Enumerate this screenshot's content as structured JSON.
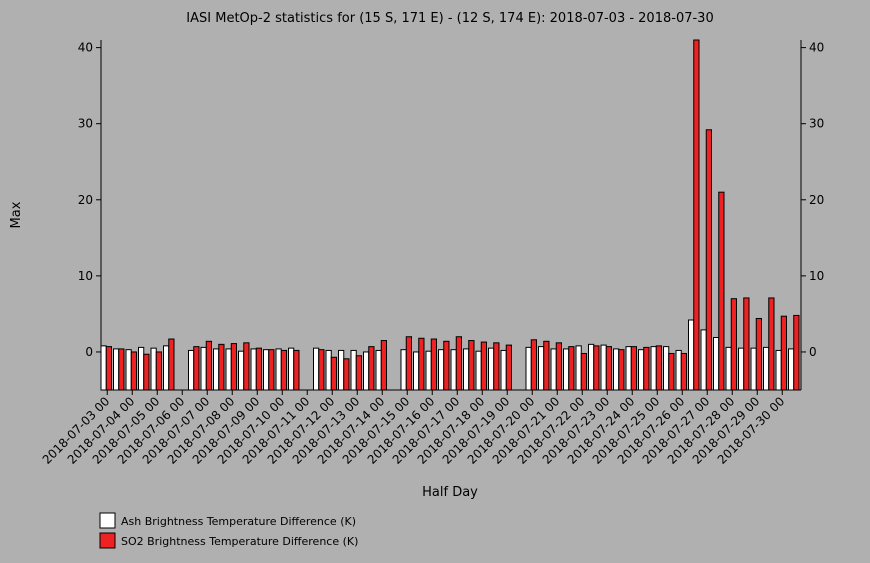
{
  "chart_data": {
    "type": "bar",
    "title": "IASI MetOp-2 statistics for (15 S, 171 E) - (12 S, 174 E): 2018-07-03 - 2018-07-30",
    "x_label": "Half Day",
    "y_label": "Max",
    "categories": [
      "2018-07-03 00",
      null,
      "2018-07-04 00",
      null,
      "2018-07-05 00",
      null,
      "2018-07-06 00",
      null,
      "2018-07-07 00",
      null,
      "2018-07-08 00",
      null,
      "2018-07-09 00",
      null,
      "2018-07-10 00",
      null,
      "2018-07-11 00",
      null,
      "2018-07-12 00",
      null,
      "2018-07-13 00",
      null,
      "2018-07-14 00",
      null,
      "2018-07-15 00",
      null,
      "2018-07-16 00",
      null,
      "2018-07-17 00",
      null,
      "2018-07-18 00",
      null,
      "2018-07-19 00",
      null,
      "2018-07-20 00",
      null,
      "2018-07-21 00",
      null,
      "2018-07-22 00",
      null,
      "2018-07-23 00",
      null,
      "2018-07-24 00",
      null,
      "2018-07-25 00",
      null,
      "2018-07-26 00",
      null,
      "2018-07-27 00",
      null,
      "2018-07-28 00",
      null,
      "2018-07-29 00",
      null,
      "2018-07-30 00",
      null
    ],
    "series": [
      {
        "name": "Ash Brightness Temperature Difference (K)",
        "color": "#ffffff",
        "values": [
          0.8,
          0.4,
          0.3,
          0.6,
          0.5,
          0.8,
          null,
          0.2,
          0.6,
          0.4,
          0.4,
          0.1,
          0.4,
          0.3,
          0.4,
          0.5,
          null,
          0.5,
          0.2,
          0.2,
          0.2,
          0.0,
          0.2,
          null,
          0.3,
          0.0,
          0.1,
          0.3,
          0.3,
          0.4,
          0.1,
          0.5,
          0.2,
          null,
          0.6,
          0.7,
          0.4,
          0.4,
          0.8,
          1.0,
          0.9,
          0.4,
          0.7,
          0.3,
          0.7,
          0.7,
          0.2,
          4.2,
          2.9,
          1.9,
          0.6,
          0.5,
          0.5,
          0.6,
          0.2,
          0.4
        ]
      },
      {
        "name": "SO2 Brightness Temperature Difference (K)",
        "color": "#ee2222",
        "values": [
          0.7,
          0.4,
          0.0,
          -0.3,
          0.0,
          1.7,
          null,
          0.7,
          1.4,
          1.0,
          1.1,
          1.2,
          0.5,
          0.3,
          0.2,
          0.2,
          null,
          0.3,
          -0.7,
          -0.9,
          -0.5,
          0.7,
          1.5,
          null,
          2.0,
          1.8,
          1.7,
          1.4,
          2.0,
          1.5,
          1.3,
          1.2,
          0.9,
          null,
          1.6,
          1.4,
          1.2,
          0.7,
          -0.2,
          0.8,
          0.7,
          0.3,
          0.7,
          0.6,
          0.8,
          -0.2,
          -0.2,
          41,
          29.2,
          21.0,
          7.0,
          7.1,
          4.4,
          7.1,
          4.7,
          4.8
        ]
      }
    ],
    "ylim": [
      -5,
      41
    ],
    "yticks": [
      0,
      10,
      20,
      30,
      40
    ]
  }
}
